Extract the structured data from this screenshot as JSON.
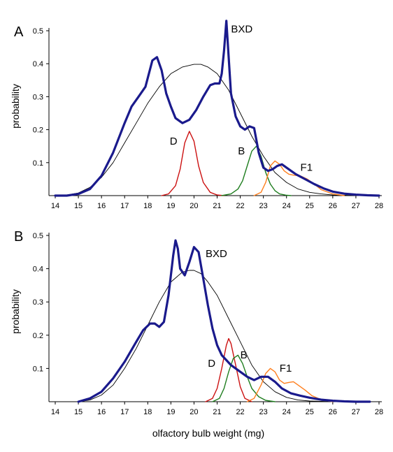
{
  "xlabel": "olfactory bulb weight (mg)",
  "chart_data": [
    {
      "panel": "A",
      "type": "line",
      "ylabel": "probability",
      "xlim": [
        14,
        28
      ],
      "ylim": [
        0,
        0.5
      ],
      "xticks": [
        "14",
        "15",
        "16",
        "17",
        "18",
        "19",
        "20",
        "21",
        "22",
        "23",
        "24",
        "25",
        "26",
        "27",
        "28"
      ],
      "yticks": [
        "0.1",
        "0.2",
        "0.3",
        "0.4",
        "0.5"
      ],
      "series": [
        {
          "name": "BXD",
          "color": "#1a1a8c",
          "width": 3.2,
          "x": [
            14.0,
            14.5,
            15.0,
            15.5,
            16.0,
            16.5,
            17.0,
            17.3,
            17.6,
            17.9,
            18.2,
            18.4,
            18.6,
            18.8,
            19.0,
            19.2,
            19.5,
            19.8,
            20.1,
            20.4,
            20.7,
            20.9,
            21.1,
            21.2,
            21.3,
            21.4,
            21.5,
            21.6,
            21.8,
            22.0,
            22.2,
            22.4,
            22.6,
            22.8,
            23.0,
            23.2,
            23.4,
            23.6,
            23.8,
            24.0,
            24.4,
            24.8,
            25.2,
            25.6,
            26.0,
            26.5,
            27.0,
            27.5,
            28.0
          ],
          "y": [
            0.0,
            0.0,
            0.005,
            0.02,
            0.06,
            0.13,
            0.22,
            0.27,
            0.3,
            0.33,
            0.41,
            0.42,
            0.38,
            0.31,
            0.27,
            0.235,
            0.22,
            0.23,
            0.26,
            0.3,
            0.335,
            0.34,
            0.34,
            0.37,
            0.44,
            0.53,
            0.42,
            0.31,
            0.24,
            0.21,
            0.2,
            0.21,
            0.205,
            0.13,
            0.085,
            0.075,
            0.08,
            0.09,
            0.095,
            0.085,
            0.065,
            0.05,
            0.035,
            0.022,
            0.012,
            0.006,
            0.003,
            0.001,
            0.0
          ]
        },
        {
          "name": "",
          "color": "#000000",
          "width": 0.9,
          "x": [
            14.0,
            14.5,
            15.0,
            15.5,
            16.0,
            16.5,
            17.0,
            17.5,
            18.0,
            18.5,
            19.0,
            19.5,
            20.0,
            20.3,
            20.6,
            21.0,
            21.5,
            22.0,
            22.5,
            23.0,
            23.5,
            24.0,
            24.5,
            25.0,
            25.5,
            26.0,
            26.5,
            27.0,
            28.0
          ],
          "y": [
            0.0,
            0.002,
            0.008,
            0.025,
            0.055,
            0.1,
            0.16,
            0.22,
            0.28,
            0.33,
            0.37,
            0.39,
            0.398,
            0.398,
            0.39,
            0.37,
            0.32,
            0.25,
            0.18,
            0.12,
            0.07,
            0.04,
            0.02,
            0.01,
            0.005,
            0.002,
            0.001,
            0.0,
            0.0
          ]
        },
        {
          "name": "D",
          "color": "#cc1111",
          "width": 1.4,
          "x": [
            18.6,
            18.9,
            19.2,
            19.4,
            19.6,
            19.8,
            20.0,
            20.2,
            20.4,
            20.7,
            21.0,
            21.3
          ],
          "y": [
            0.0,
            0.005,
            0.03,
            0.08,
            0.16,
            0.195,
            0.165,
            0.09,
            0.04,
            0.01,
            0.002,
            0.0
          ]
        },
        {
          "name": "B",
          "color": "#1e7d1e",
          "width": 1.4,
          "x": [
            21.2,
            21.6,
            21.9,
            22.1,
            22.3,
            22.5,
            22.7,
            22.9,
            23.1,
            23.3,
            23.5,
            23.7,
            24.0,
            24.2
          ],
          "y": [
            0.0,
            0.005,
            0.02,
            0.045,
            0.09,
            0.135,
            0.15,
            0.12,
            0.07,
            0.035,
            0.015,
            0.005,
            0.001,
            0.0
          ]
        },
        {
          "name": "F1",
          "color": "#ff7f1e",
          "width": 1.4,
          "x": [
            22.6,
            22.9,
            23.1,
            23.3,
            23.5,
            23.7,
            23.9,
            24.1,
            24.3,
            24.6,
            24.9,
            25.2,
            25.5,
            26.0,
            26.5
          ],
          "y": [
            0.0,
            0.01,
            0.04,
            0.09,
            0.105,
            0.095,
            0.075,
            0.065,
            0.062,
            0.06,
            0.05,
            0.035,
            0.018,
            0.005,
            0.0
          ]
        }
      ],
      "annotations": [
        {
          "text": "BXD",
          "x": 21.6,
          "y": 0.495
        },
        {
          "text": "D",
          "x": 18.95,
          "y": 0.155
        },
        {
          "text": "B",
          "x": 21.9,
          "y": 0.125
        },
        {
          "text": "F1",
          "x": 24.6,
          "y": 0.075
        }
      ]
    },
    {
      "panel": "B",
      "type": "line",
      "ylabel": "probability",
      "xlim": [
        14,
        28
      ],
      "ylim": [
        0,
        0.5
      ],
      "xticks": [
        "14",
        "15",
        "16",
        "17",
        "18",
        "19",
        "20",
        "21",
        "22",
        "23",
        "24",
        "25",
        "26",
        "27",
        "28"
      ],
      "yticks": [
        "0.1",
        "0.2",
        "0.3",
        "0.4",
        "0.5"
      ],
      "series": [
        {
          "name": "BXD",
          "color": "#1a1a8c",
          "width": 3.2,
          "x": [
            15.0,
            15.5,
            16.0,
            16.5,
            17.0,
            17.5,
            17.8,
            18.1,
            18.3,
            18.5,
            18.7,
            18.9,
            19.1,
            19.2,
            19.3,
            19.4,
            19.6,
            19.8,
            20.0,
            20.2,
            20.4,
            20.6,
            20.8,
            21.0,
            21.2,
            21.4,
            21.6,
            21.8,
            22.0,
            22.3,
            22.6,
            22.9,
            23.2,
            23.5,
            23.8,
            24.2,
            24.6,
            25.0,
            25.5,
            26.0,
            26.5,
            27.0,
            27.6
          ],
          "y": [
            0.0,
            0.01,
            0.03,
            0.07,
            0.12,
            0.18,
            0.215,
            0.235,
            0.235,
            0.225,
            0.24,
            0.32,
            0.44,
            0.485,
            0.46,
            0.4,
            0.38,
            0.42,
            0.465,
            0.45,
            0.37,
            0.29,
            0.22,
            0.17,
            0.14,
            0.125,
            0.11,
            0.1,
            0.09,
            0.075,
            0.065,
            0.075,
            0.075,
            0.06,
            0.04,
            0.025,
            0.018,
            0.012,
            0.006,
            0.003,
            0.001,
            0.0,
            0.0
          ]
        },
        {
          "name": "",
          "color": "#000000",
          "width": 0.9,
          "x": [
            15.0,
            15.5,
            16.0,
            16.5,
            17.0,
            17.5,
            18.0,
            18.5,
            19.0,
            19.5,
            19.8,
            20.0,
            20.3,
            20.6,
            21.0,
            21.5,
            22.0,
            22.5,
            23.0,
            23.5,
            24.0,
            24.5,
            25.0,
            25.5,
            26.0,
            26.5,
            27.0,
            27.6
          ],
          "y": [
            0.0,
            0.005,
            0.02,
            0.05,
            0.1,
            0.16,
            0.23,
            0.3,
            0.36,
            0.39,
            0.395,
            0.395,
            0.385,
            0.36,
            0.32,
            0.25,
            0.18,
            0.11,
            0.06,
            0.03,
            0.013,
            0.005,
            0.002,
            0.001,
            0.0,
            0.0,
            0.0,
            0.0
          ]
        },
        {
          "name": "D",
          "color": "#cc1111",
          "width": 1.4,
          "x": [
            20.5,
            20.8,
            21.0,
            21.2,
            21.4,
            21.5,
            21.6,
            21.8,
            22.0,
            22.2,
            22.5
          ],
          "y": [
            0.0,
            0.01,
            0.04,
            0.1,
            0.17,
            0.19,
            0.175,
            0.11,
            0.045,
            0.01,
            0.0
          ]
        },
        {
          "name": "B",
          "color": "#1e7d1e",
          "width": 1.4,
          "x": [
            20.8,
            21.1,
            21.3,
            21.5,
            21.7,
            21.9,
            22.1,
            22.3,
            22.5,
            22.8,
            23.1,
            23.5
          ],
          "y": [
            0.0,
            0.01,
            0.04,
            0.09,
            0.13,
            0.14,
            0.115,
            0.075,
            0.04,
            0.015,
            0.004,
            0.0
          ]
        },
        {
          "name": "F1",
          "color": "#ff7f1e",
          "width": 1.4,
          "x": [
            22.3,
            22.6,
            22.9,
            23.1,
            23.3,
            23.5,
            23.7,
            23.9,
            24.1,
            24.3,
            24.5,
            24.8,
            25.1,
            25.5,
            26.0
          ],
          "y": [
            0.0,
            0.01,
            0.05,
            0.085,
            0.1,
            0.09,
            0.065,
            0.055,
            0.058,
            0.06,
            0.05,
            0.035,
            0.018,
            0.006,
            0.0
          ]
        }
      ],
      "annotations": [
        {
          "text": "BXD",
          "x": 20.5,
          "y": 0.435
        },
        {
          "text": "D",
          "x": 20.6,
          "y": 0.105
        },
        {
          "text": "B",
          "x": 22.0,
          "y": 0.13
        },
        {
          "text": "F1",
          "x": 23.7,
          "y": 0.09
        }
      ]
    }
  ]
}
